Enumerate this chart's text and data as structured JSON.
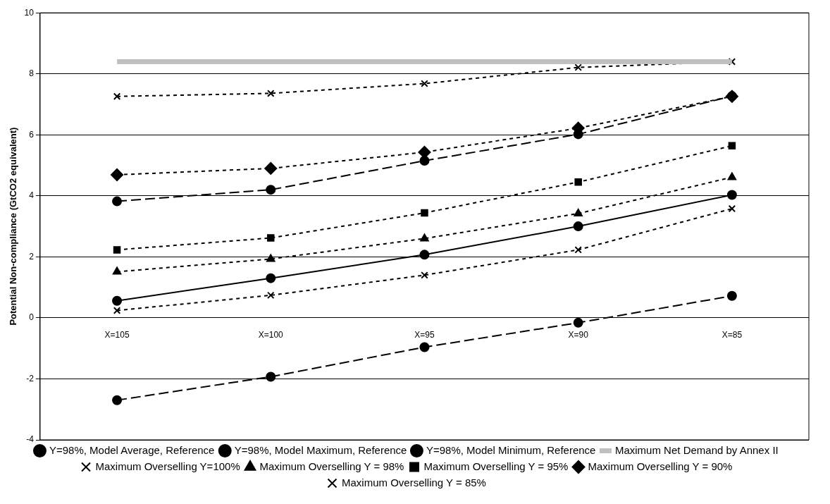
{
  "chart_data": {
    "type": "line",
    "ylabel": "Potential Non-compliance (GtCO2 equivalent)",
    "categories": [
      "X=105",
      "X=100",
      "X=95",
      "X=90",
      "X=85"
    ],
    "ylim": [
      -4,
      10
    ],
    "yticks": [
      -4,
      -2,
      0,
      2,
      4,
      6,
      8,
      10
    ],
    "grid": "y",
    "legend": "bottom",
    "series": [
      {
        "name": "Y=98%, Model Average, Reference",
        "color": "#000000",
        "marker": "circle",
        "line_style": "solid",
        "values": [
          0.56,
          1.3,
          2.07,
          3.0,
          4.03
        ]
      },
      {
        "name": "Y=98%, Model Maximum, Reference",
        "color": "#000000",
        "marker": "circle",
        "line_style": "dashed",
        "values": [
          3.82,
          4.2,
          5.15,
          6.02,
          7.27
        ]
      },
      {
        "name": "Y=98%, Model Minimum, Reference",
        "color": "#000000",
        "marker": "circle",
        "line_style": "dashed",
        "values": [
          -2.7,
          -1.93,
          -0.96,
          -0.16,
          0.72
        ]
      },
      {
        "name": "Maximum Net Demand by Annex II",
        "color": "#c0c0c0",
        "marker": "none",
        "line_style": "solid",
        "values": [
          8.4,
          8.4,
          8.4,
          8.4,
          8.4
        ]
      },
      {
        "name": "Maximum Overselling Y=100%",
        "color": "#000000",
        "marker": "cross",
        "line_style": "dotted",
        "values": [
          0.24,
          0.74,
          1.4,
          2.23,
          3.58
        ]
      },
      {
        "name": "Maximum Overselling Y = 98%",
        "color": "#000000",
        "marker": "triangle",
        "line_style": "dotted",
        "values": [
          1.51,
          1.93,
          2.6,
          3.42,
          4.61
        ]
      },
      {
        "name": "Maximum Overselling Y = 95%",
        "color": "#000000",
        "marker": "square",
        "line_style": "dotted",
        "values": [
          2.23,
          2.62,
          3.44,
          4.45,
          5.64
        ]
      },
      {
        "name": "Maximum Overselling Y = 90%",
        "color": "#000000",
        "marker": "diamond",
        "line_style": "dotted",
        "values": [
          4.69,
          4.9,
          5.43,
          6.22,
          7.26
        ]
      },
      {
        "name": "Maximum Overselling Y = 85%",
        "color": "#000000",
        "marker": "cross",
        "line_style": "dotted",
        "values": [
          7.26,
          7.36,
          7.68,
          8.21,
          8.4
        ]
      }
    ]
  }
}
